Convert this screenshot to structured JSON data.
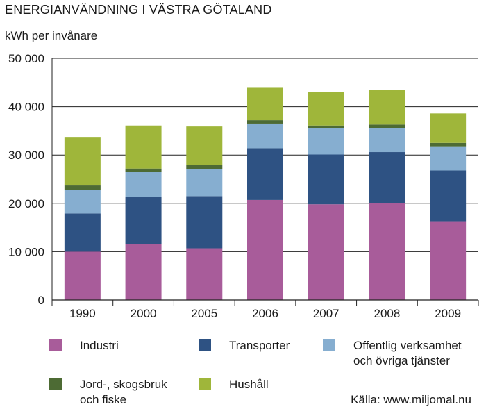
{
  "chart_data": {
    "type": "bar",
    "stacked": true,
    "title": "ENERGIANVÄNDNING I VÄSTRA GÖTALAND",
    "ylabel": "kWh per invånare",
    "xlabel": "",
    "ylim": [
      0,
      50000
    ],
    "yticks": [
      0,
      10000,
      20000,
      30000,
      40000,
      50000
    ],
    "ytick_labels": [
      "0",
      "10 000",
      "20 000",
      "30 000",
      "40 000",
      "50 000"
    ],
    "grid": true,
    "legend_position": "bottom",
    "categories": [
      "1990",
      "2000",
      "2005",
      "2006",
      "2007",
      "2008",
      "2009"
    ],
    "series": [
      {
        "name": "Industri",
        "color": "#a85c9a",
        "values": [
          10000,
          11500,
          10700,
          20700,
          19800,
          20000,
          16300
        ]
      },
      {
        "name": "Transporter",
        "color": "#2e5283",
        "values": [
          7900,
          9900,
          10800,
          10700,
          10300,
          10600,
          10500
        ]
      },
      {
        "name": "Offentlig verksamhet\noch övriga tjänster",
        "color": "#86aed0",
        "values": [
          4900,
          5100,
          5600,
          5100,
          5400,
          5000,
          5000
        ]
      },
      {
        "name": "Jord-, skogsbruk\noch fiske",
        "color": "#4d6b34",
        "values": [
          900,
          700,
          900,
          700,
          600,
          700,
          700
        ]
      },
      {
        "name": "Hushåll",
        "color": "#9fb63a",
        "values": [
          9900,
          8900,
          7900,
          6700,
          7000,
          7100,
          6100
        ]
      }
    ],
    "source": "Källa: www.miljomal.nu"
  }
}
